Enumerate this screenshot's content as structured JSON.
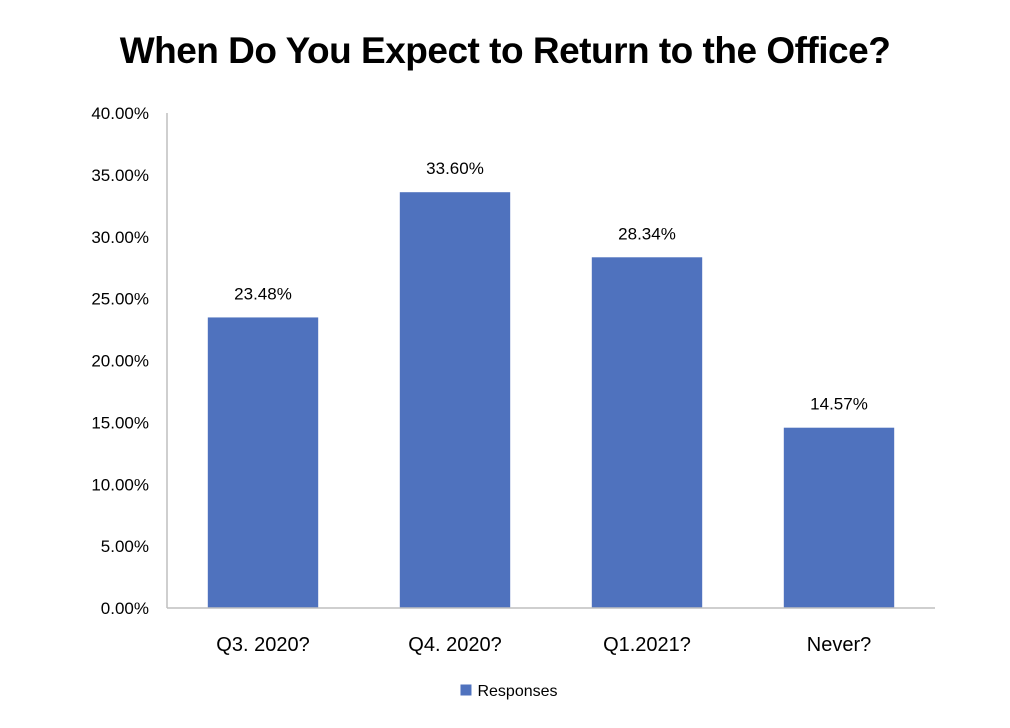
{
  "chart_data": {
    "type": "bar",
    "title": "When Do You Expect to Return to the Office?",
    "categories": [
      "Q3. 2020?",
      "Q4. 2020?",
      "Q1.2021?",
      "Never?"
    ],
    "series": [
      {
        "name": "Responses",
        "values": [
          23.48,
          33.6,
          28.34,
          14.57
        ],
        "labels": [
          "23.48%",
          "33.60%",
          "28.34%",
          "14.57%"
        ],
        "color": "#4F72BE"
      }
    ],
    "ylim": [
      0,
      40
    ],
    "yticks": [
      0,
      5,
      10,
      15,
      20,
      25,
      30,
      35,
      40
    ],
    "ytick_labels": [
      "0.00%",
      "5.00%",
      "10.00%",
      "15.00%",
      "20.00%",
      "25.00%",
      "30.00%",
      "35.00%",
      "40.00%"
    ],
    "grid": false,
    "legend_position": "bottom"
  }
}
